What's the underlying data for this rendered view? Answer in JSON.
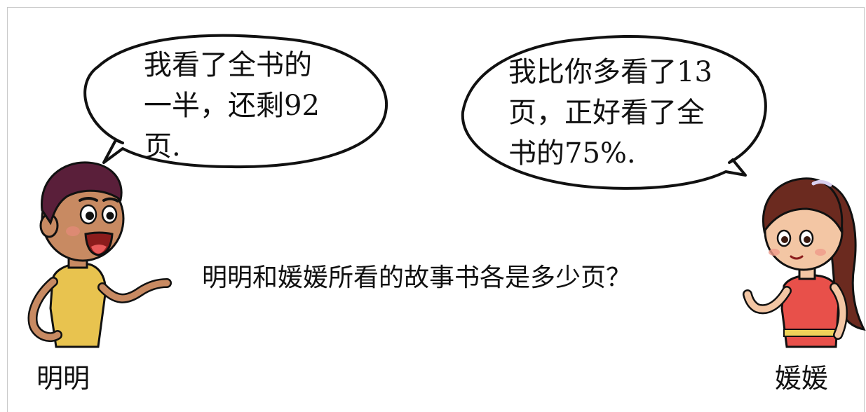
{
  "problem": {
    "question": "明明和媛媛所看的故事书各是多少页？"
  },
  "characters": {
    "left": {
      "name": "明明",
      "speech": [
        "我看了全书的",
        "一半，还剩92",
        "页."
      ]
    },
    "right": {
      "name": "媛媛",
      "speech": [
        "我比你多看了13",
        "页，正好看了全",
        "书的75%."
      ]
    }
  },
  "colors": {
    "outline": "#111111",
    "boy_skin": "#c88a62",
    "boy_hair": "#5a1f3a",
    "boy_shirt": "#e8c34f",
    "girl_skin": "#f3c6a4",
    "girl_hair": "#6b2a1f",
    "girl_dress": "#e8504a"
  }
}
